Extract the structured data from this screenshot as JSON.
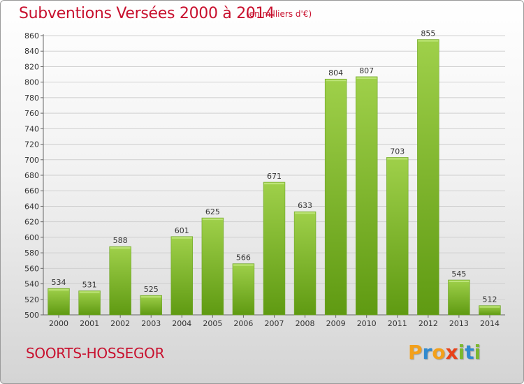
{
  "header": {
    "title": "Subventions Versées 2000 à 2014",
    "unit_note": "(en milliers d'€)"
  },
  "footer": {
    "city": "SOORTS-HOSSEGOR",
    "logo": [
      "P",
      "r",
      "o",
      "x",
      "i",
      "t",
      "i"
    ]
  },
  "colors": {
    "accent": "#c8102e",
    "bar_top": "#9fd04a",
    "bar_bottom": "#5f9a12",
    "grid": "#cfcfcf"
  },
  "chart_data": {
    "type": "bar",
    "title": "Subventions Versées 2000 à 2014",
    "subtitle": "(en milliers d'€)",
    "categories": [
      "2000",
      "2001",
      "2002",
      "2003",
      "2004",
      "2005",
      "2006",
      "2007",
      "2008",
      "2009",
      "2010",
      "2011",
      "2012",
      "2013",
      "2014"
    ],
    "values": [
      534,
      531,
      588,
      525,
      601,
      625,
      566,
      671,
      633,
      804,
      807,
      703,
      855,
      545,
      512
    ],
    "ylim": [
      500,
      860
    ],
    "yticks": [
      500,
      520,
      540,
      560,
      580,
      600,
      620,
      640,
      660,
      680,
      700,
      720,
      740,
      760,
      780,
      800,
      820,
      840,
      860
    ],
    "grid": true,
    "data_labels": true
  }
}
